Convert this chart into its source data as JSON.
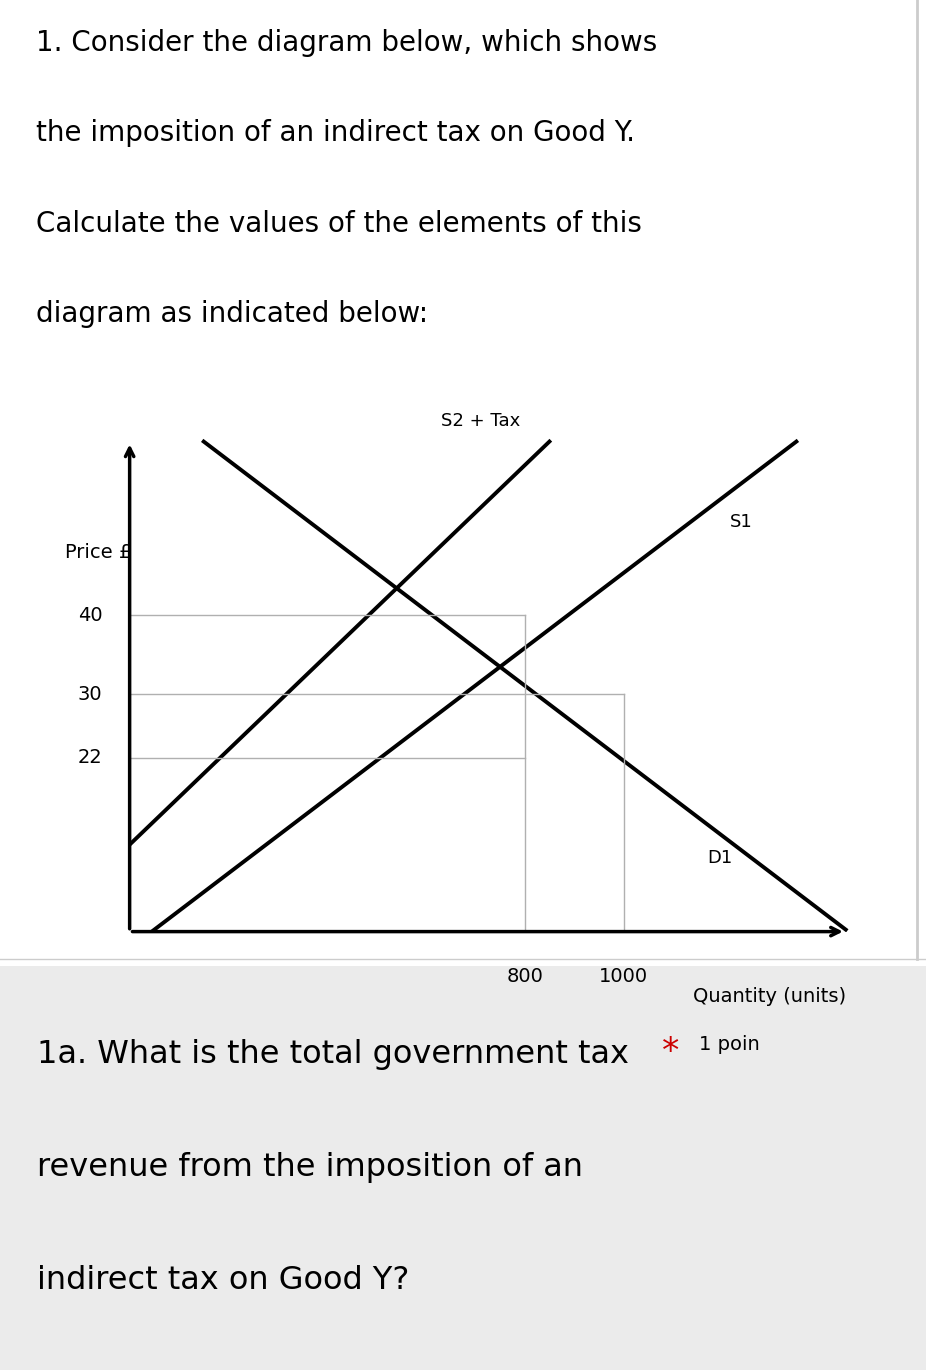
{
  "title_text_lines": [
    "1. Consider the diagram below, which shows",
    "the imposition of an indirect tax on Good Y.",
    "Calculate the values of the elements of this",
    "diagram as indicated below:"
  ],
  "q_line1": "1a. What is the total government tax",
  "q_line2": "revenue from the imposition of an",
  "q_line3": "indirect tax on Good Y?",
  "star_text": "*",
  "point_text": "1 poin",
  "ylabel": "Price £",
  "xlabel": "Quantity (units)",
  "price_ticks": [
    22,
    30,
    40
  ],
  "qty_ticks": [
    800,
    1000
  ],
  "background_color": "#ffffff",
  "panel2_background": "#ebebeb",
  "line_color": "#000000",
  "gridline_color": "#b0b0b0",
  "star_color": "#cc0000",
  "D1_label": "D1",
  "S1_label": "S1",
  "S2Tax_label": "S2 + Tax",
  "xlim": [
    0,
    1500
  ],
  "ylim": [
    0,
    65
  ],
  "price_axis_max": 62,
  "qty_axis_max": 1450,
  "D1_points": [
    [
      150,
      62
    ],
    [
      1350,
      5
    ]
  ],
  "S1_points": [
    [
      150,
      5
    ],
    [
      1350,
      62
    ]
  ],
  "S2Tax_points": [
    [
      150,
      20
    ],
    [
      850,
      62
    ]
  ],
  "eq1_x": 1000,
  "eq1_y": 30,
  "eq2_x": 800,
  "eq2_y": 40,
  "eq2_producer_y": 22,
  "hline_y22_x": 800,
  "hline_y30_x": 1000,
  "hline_y40_x": 800,
  "font_size_title": 20,
  "font_size_question": 23,
  "font_size_axis_label": 14,
  "font_size_tick": 14,
  "font_size_line_label": 13,
  "font_size_point": 14
}
